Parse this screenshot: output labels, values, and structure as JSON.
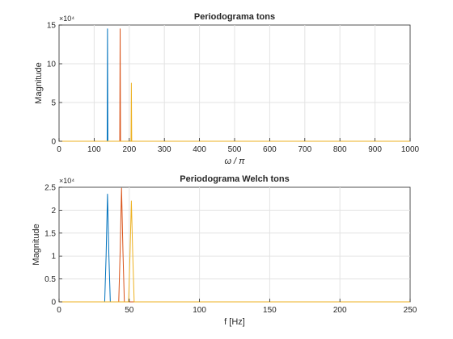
{
  "chart_data": [
    {
      "type": "line",
      "title": "Periodograma tons",
      "xlabel": "ω / π",
      "ylabel": "Magnitude",
      "xlim": [
        0,
        1000
      ],
      "ylim": [
        0,
        150000
      ],
      "xticks": [
        0,
        100,
        200,
        300,
        400,
        500,
        600,
        700,
        800,
        900,
        1000
      ],
      "xtick_labels": [
        "0",
        "100",
        "200",
        "300",
        "400",
        "500",
        "600",
        "700",
        "800",
        "900",
        "1000"
      ],
      "yticks": [
        0,
        50000,
        100000,
        150000
      ],
      "ytick_labels": [
        "0",
        "5",
        "10",
        "15"
      ],
      "y_exponent_label": "×10⁴",
      "grid": true,
      "series": [
        {
          "color": "#0072BD",
          "x": [
            0,
            137,
            138,
            139,
            1000
          ],
          "y": [
            0,
            0,
            145000,
            0,
            0
          ]
        },
        {
          "color": "#D95319",
          "x": [
            0,
            173,
            174,
            175,
            1000
          ],
          "y": [
            0,
            0,
            145000,
            0,
            0
          ]
        },
        {
          "color": "#EDB120",
          "x": [
            0,
            205,
            206,
            207,
            1000
          ],
          "y": [
            0,
            0,
            75000,
            0,
            0
          ]
        }
      ]
    },
    {
      "type": "line",
      "title": "Periodograma Welch tons",
      "xlabel": "f [Hz]",
      "ylabel": "Magnitude",
      "xlim": [
        0,
        250
      ],
      "ylim": [
        0,
        25000
      ],
      "xticks": [
        0,
        50,
        100,
        150,
        200,
        250
      ],
      "xtick_labels": [
        "0",
        "50",
        "100",
        "150",
        "200",
        "250"
      ],
      "yticks": [
        0,
        5000,
        10000,
        15000,
        20000,
        25000
      ],
      "ytick_labels": [
        "0",
        "0.5",
        "1",
        "1.5",
        "2",
        "2.5"
      ],
      "y_exponent_label": "×10⁴",
      "grid": true,
      "series": [
        {
          "color": "#0072BD",
          "x": [
            0,
            32.5,
            33.5,
            34.5,
            35.5,
            36.5,
            250
          ],
          "y": [
            0,
            0,
            10000,
            23500,
            10000,
            0,
            0
          ]
        },
        {
          "color": "#D95319",
          "x": [
            0,
            42.5,
            43.5,
            44.5,
            45.5,
            46.5,
            250
          ],
          "y": [
            0,
            0,
            11000,
            24800,
            11000,
            0,
            0
          ]
        },
        {
          "color": "#EDB120",
          "x": [
            0,
            49.5,
            50.5,
            51.5,
            52.5,
            53.5,
            250
          ],
          "y": [
            0,
            0,
            10000,
            22000,
            10000,
            0,
            0
          ]
        }
      ]
    }
  ]
}
